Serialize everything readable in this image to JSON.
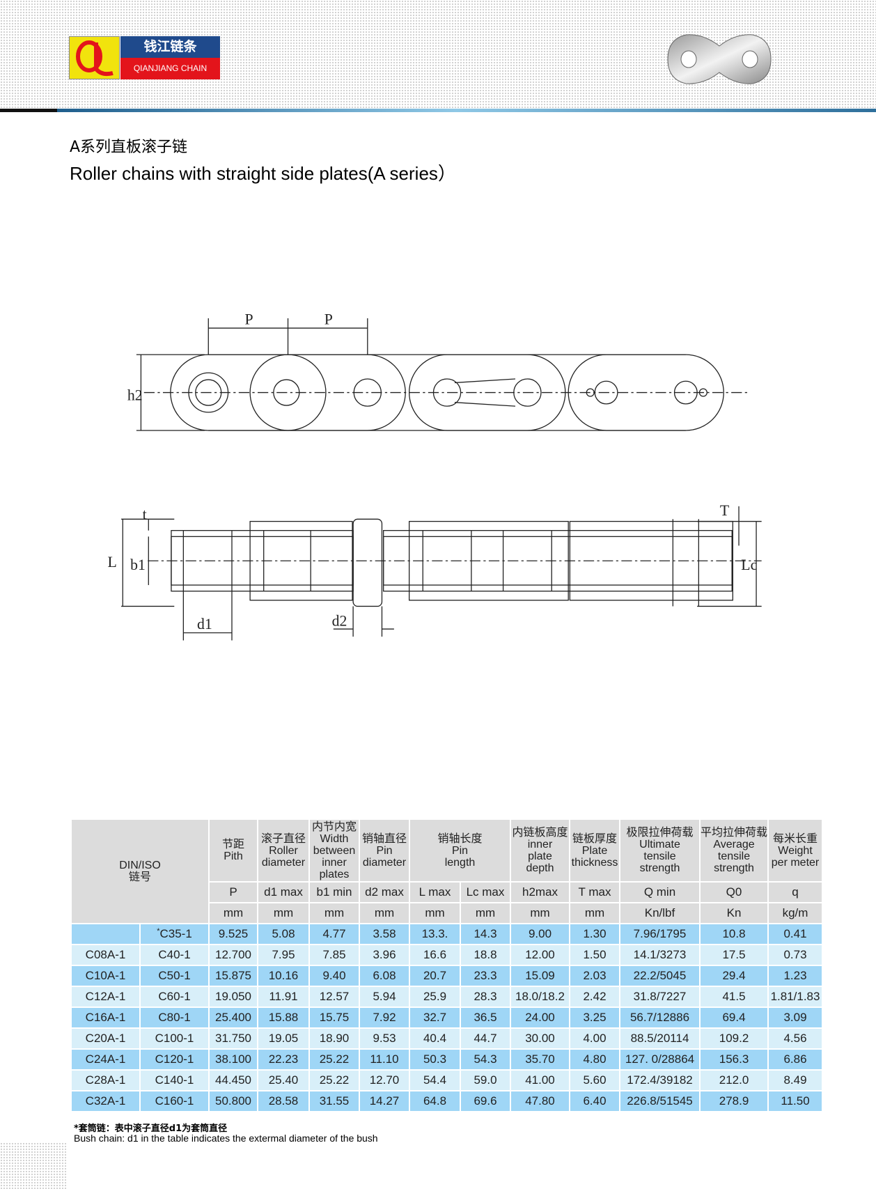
{
  "brand": {
    "cn": "钱江链条",
    "en": "QIANJIANG CHAIN",
    "logo_letters": "QL",
    "colors": {
      "yellow": "#f1e30d",
      "blue": "#1f4a8c",
      "red": "#e3141b"
    }
  },
  "title": {
    "cn": "A系列直板滚子链",
    "en": "Roller chains with straight side plates(A series）"
  },
  "diagram_labels": {
    "P1": "P",
    "P2": "P",
    "h2": "h2",
    "t": "t",
    "L": "L",
    "b1": "b1",
    "d1": "d1",
    "d2": "d2",
    "T": "T",
    "Lc": "Lc"
  },
  "table": {
    "din_iso": "DIN/ISO",
    "chain_no": "链号",
    "columns": [
      {
        "cn": "节距",
        "en": "Pith",
        "sym": "P",
        "unit": "mm"
      },
      {
        "cn": "滚子直径",
        "en": "Roller diameter",
        "sym": "d1 max",
        "unit": "mm"
      },
      {
        "cn": "内节内宽",
        "en": "Width between inner plates",
        "sym": "b1 min",
        "unit": "mm"
      },
      {
        "cn": "销轴直径",
        "en": "Pin diameter",
        "sym": "d2 max",
        "unit": "mm"
      },
      {
        "cn": "销轴长度",
        "en": "Pin length",
        "sym": "L max",
        "unit": "mm",
        "sym2": "Lc max",
        "unit2": "mm"
      },
      {
        "cn": "内链板高度",
        "en": "inner plate depth",
        "sym": "h2max",
        "unit": "mm"
      },
      {
        "cn": "链板厚度",
        "en": "Plate thickness",
        "sym": "T max",
        "unit": "mm"
      },
      {
        "cn": "极限拉伸荷载",
        "en": "Ultimate tensile strength",
        "sym": "Q min",
        "unit": "Kn/lbf"
      },
      {
        "cn": "平均拉伸荷载",
        "en": "Average tensile strength",
        "sym": "Q0",
        "unit": "Kn"
      },
      {
        "cn": "每米长重",
        "en": "Weight per meter",
        "sym": "q",
        "unit": "kg/m"
      }
    ],
    "rows": [
      [
        "",
        "C35-1",
        "9.525",
        "5.08",
        "4.77",
        "3.58",
        "13.3.",
        "14.3",
        "9.00",
        "1.30",
        "7.96/1795",
        "10.8",
        "0.41"
      ],
      [
        "C08A-1",
        "C40-1",
        "12.700",
        "7.95",
        "7.85",
        "3.96",
        "16.6",
        "18.8",
        "12.00",
        "1.50",
        "14.1/3273",
        "17.5",
        "0.73"
      ],
      [
        "C10A-1",
        "C50-1",
        "15.875",
        "10.16",
        "9.40",
        "6.08",
        "20.7",
        "23.3",
        "15.09",
        "2.03",
        "22.2/5045",
        "29.4",
        "1.23"
      ],
      [
        "C12A-1",
        "C60-1",
        "19.050",
        "11.91",
        "12.57",
        "5.94",
        "25.9",
        "28.3",
        "18.0/18.2",
        "2.42",
        "31.8/7227",
        "41.5",
        "1.81/1.83"
      ],
      [
        "C16A-1",
        "C80-1",
        "25.400",
        "15.88",
        "15.75",
        "7.92",
        "32.7",
        "36.5",
        "24.00",
        "3.25",
        "56.7/12886",
        "69.4",
        "3.09"
      ],
      [
        "C20A-1",
        "C100-1",
        "31.750",
        "19.05",
        "18.90",
        "9.53",
        "40.4",
        "44.7",
        "30.00",
        "4.00",
        "88.5/20114",
        "109.2",
        "4.56"
      ],
      [
        "C24A-1",
        "C120-1",
        "38.100",
        "22.23",
        "25.22",
        "11.10",
        "50.3",
        "54.3",
        "35.70",
        "4.80",
        "127. 0/28864",
        "156.3",
        "6.86"
      ],
      [
        "C28A-1",
        "C140-1",
        "44.450",
        "25.40",
        "25.22",
        "12.70",
        "54.4",
        "59.0",
        "41.00",
        "5.60",
        "172.4/39182",
        "212.0",
        "8.49"
      ],
      [
        "C32A-1",
        "C160-1",
        "50.800",
        "28.58",
        "31.55",
        "14.27",
        "64.8",
        "69.6",
        "47.80",
        "6.40",
        "226.8/51545",
        "278.9",
        "11.50"
      ]
    ],
    "first_row_mark": "*"
  },
  "footnote": {
    "cn": "*套筒链：表中滚子直径d1为套筒直径",
    "en": "Bush chain: d1 in the table indicates the extermal diameter of the bush"
  }
}
